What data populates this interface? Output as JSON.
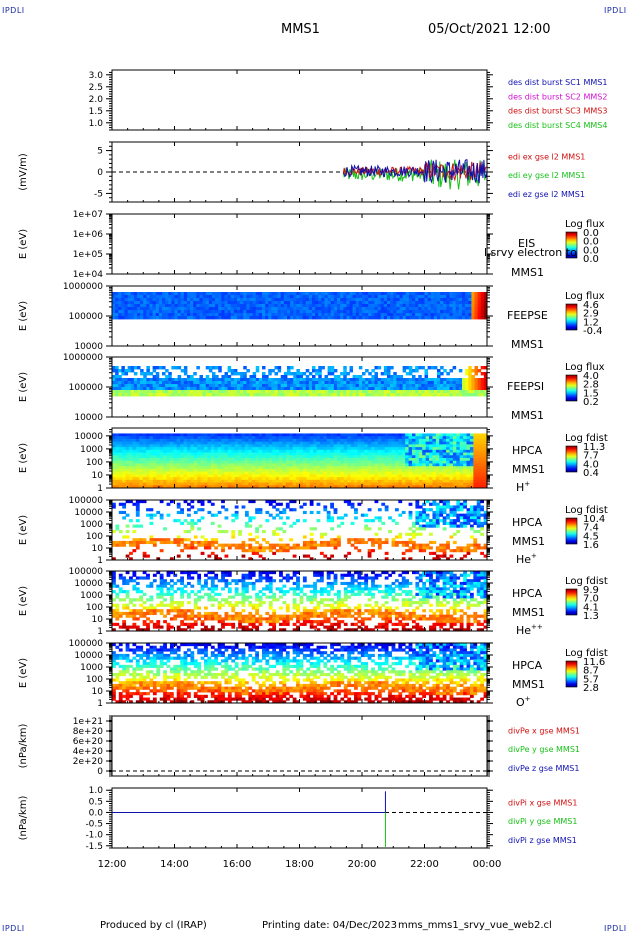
{
  "corner_labels": {
    "top_left": "IPDLI",
    "top_right": "IPDLI",
    "bottom_left": "IPDLI",
    "bottom_right": "IPDLI"
  },
  "header": {
    "spacecraft": "MMS1",
    "date": "05/Oct/2021 12:00"
  },
  "footer": {
    "produced": "Produced by cl (IRAP)",
    "printing": "Printing date: 04/Dec/2023",
    "script": "mms_mms1_srvy_vue_web2.cl"
  },
  "colors": {
    "red": "#d01010",
    "green": "#18c018",
    "blue": "#1010b0",
    "magenta": "#d010d0"
  },
  "chart_data": [
    {
      "type": "line",
      "id": "des",
      "ylim": [
        0.7,
        3.2
      ],
      "yticks": [
        "3.0",
        "2.5",
        "2.0",
        "1.5",
        "1.0"
      ],
      "ytick_values": [
        3.0,
        2.5,
        2.0,
        1.5,
        1.0
      ],
      "ylabel": "",
      "legend": [
        {
          "text": "des dist burst SC1 MMS1",
          "color": "#1010b0"
        },
        {
          "text": "des dist burst SC2 MMS2",
          "color": "#d010d0"
        },
        {
          "text": "des dist burst SC3 MMS3",
          "color": "#d01010"
        },
        {
          "text": "des dist burst SC4 MMS4",
          "color": "#18c018"
        }
      ]
    },
    {
      "type": "line",
      "id": "edi",
      "ylim": [
        -7,
        7
      ],
      "yticks": [
        "5",
        "0",
        "-5"
      ],
      "ytick_values": [
        5,
        0,
        -5
      ],
      "ylabel": "(mV/m)",
      "data_start_hour": 7.4,
      "legend": [
        {
          "text": "edi ex gse l2 MMS1",
          "color": "#d01010"
        },
        {
          "text": "edi ey gse l2 MMS1",
          "color": "#18c018"
        },
        {
          "text": "edi ez gse l2 MMS1",
          "color": "#1010b0"
        }
      ]
    },
    {
      "type": "heatmap",
      "id": "eis",
      "ylim": [
        10000.0,
        10000000.0
      ],
      "log": true,
      "yticks": [
        "1e+07",
        "1e+06",
        "1e+05",
        "1e+04"
      ],
      "ytick_values": [
        10000000.0,
        1000000.0,
        100000.0,
        10000.0
      ],
      "ylabel": "E (eV)",
      "instrument": "EIS",
      "spacecraft": "MMS1",
      "overlay_text": "l srvy electron to",
      "cbar_title": "Log flux",
      "cbar_ticks": [
        "0.0",
        "0.0",
        "0.0",
        "0.0"
      ]
    },
    {
      "type": "heatmap",
      "id": "feepse",
      "ylim": [
        10000.0,
        1000000.0
      ],
      "log": true,
      "yticks": [
        "1000000",
        "100000",
        "10000"
      ],
      "ytick_values": [
        1000000.0,
        100000.0,
        10000.0
      ],
      "ylabel": "E (eV)",
      "instrument": "FEEPSE",
      "spacecraft": "MMS1",
      "cbar_title": "Log flux",
      "cbar_ticks": [
        "4.6",
        "2.9",
        "1.2",
        "-0.4"
      ]
    },
    {
      "type": "heatmap",
      "id": "feepsi",
      "ylim": [
        10000.0,
        1000000.0
      ],
      "log": true,
      "yticks": [
        "1000000",
        "100000",
        "10000"
      ],
      "ytick_values": [
        1000000.0,
        100000.0,
        10000.0
      ],
      "ylabel": "E (eV)",
      "instrument": "FEEPSI",
      "spacecraft": "MMS1",
      "cbar_title": "Log flux",
      "cbar_ticks": [
        "4.0",
        "2.8",
        "1.5",
        "0.2"
      ]
    },
    {
      "type": "heatmap",
      "id": "hpca_h",
      "ylim": [
        1,
        40000.0
      ],
      "log": true,
      "yticks": [
        "10000",
        "1000",
        "100",
        "10",
        "1"
      ],
      "ytick_values": [
        10000.0,
        1000.0,
        100.0,
        10.0,
        1
      ],
      "ylabel": "E (eV)",
      "instrument": "HPCA",
      "spacecraft": "MMS1",
      "species": "H",
      "species_charge": "+",
      "cbar_title": "Log fdist",
      "cbar_ticks": [
        "11.3",
        "7.7",
        "4.0",
        "0.4"
      ]
    },
    {
      "type": "heatmap",
      "id": "hpca_he",
      "ylim": [
        1,
        100000.0
      ],
      "log": true,
      "yticks": [
        "100000",
        "10000",
        "1000",
        "100",
        "10",
        "1"
      ],
      "ytick_values": [
        100000.0,
        10000.0,
        1000.0,
        100.0,
        10.0,
        1
      ],
      "ylabel": "E (eV)",
      "instrument": "HPCA",
      "spacecraft": "MMS1",
      "species": "He",
      "species_charge": "+",
      "cbar_title": "Log fdist",
      "cbar_ticks": [
        "10.4",
        "7.4",
        "4.5",
        "1.6"
      ]
    },
    {
      "type": "heatmap",
      "id": "hpca_hepp",
      "ylim": [
        1,
        100000.0
      ],
      "log": true,
      "yticks": [
        "100000",
        "10000",
        "1000",
        "100",
        "10",
        "1"
      ],
      "ytick_values": [
        100000.0,
        10000.0,
        1000.0,
        100.0,
        10.0,
        1
      ],
      "ylabel": "E (eV)",
      "instrument": "HPCA",
      "spacecraft": "MMS1",
      "species": "He",
      "species_charge": "++",
      "cbar_title": "Log fdist",
      "cbar_ticks": [
        "9.9",
        "7.0",
        "4.1",
        "1.3"
      ]
    },
    {
      "type": "heatmap",
      "id": "hpca_o",
      "ylim": [
        1,
        100000.0
      ],
      "log": true,
      "yticks": [
        "100000",
        "10000",
        "1000",
        "100",
        "10",
        "1"
      ],
      "ytick_values": [
        100000.0,
        10000.0,
        1000.0,
        100.0,
        10.0,
        1
      ],
      "ylabel": "E (eV)",
      "instrument": "HPCA",
      "spacecraft": "MMS1",
      "species": "O",
      "species_charge": "+",
      "cbar_title": "Log fdist",
      "cbar_ticks": [
        "11.6",
        "8.7",
        "5.7",
        "2.8"
      ]
    },
    {
      "type": "line",
      "id": "divpe",
      "ylim": [
        -1e+20,
        1.1e+21
      ],
      "yticks": [
        "1e+21",
        "8e+20",
        "6e+20",
        "4e+20",
        "2e+20",
        "0"
      ],
      "ytick_values": [
        1e+21,
        8e+20,
        6e+20,
        4e+20,
        2e+20,
        0
      ],
      "ylabel": "(nPa/km)",
      "legend": [
        {
          "text": "divPe x gse MMS1",
          "color": "#d01010"
        },
        {
          "text": "divPe y gse MMS1",
          "color": "#18c018"
        },
        {
          "text": "divPe z gse MMS1",
          "color": "#1010b0"
        }
      ]
    },
    {
      "type": "line",
      "id": "divpi",
      "ylim": [
        -1.6,
        1.1
      ],
      "yticks": [
        "1.0",
        "0.5",
        "0.0",
        "-0.5",
        "-1.0",
        "-1.5"
      ],
      "ytick_values": [
        1.0,
        0.5,
        0.0,
        -0.5,
        -1.0,
        -1.5
      ],
      "ylabel": "(nPa/km)",
      "spike_hour": 8.75,
      "legend": [
        {
          "text": "divPi x gse MMS1",
          "color": "#d01010"
        },
        {
          "text": "divPi y gse MMS1",
          "color": "#18c018"
        },
        {
          "text": "divPi z gse MMS1",
          "color": "#1010b0"
        }
      ]
    }
  ],
  "xaxis": {
    "xlim_hours": [
      0,
      12
    ],
    "ticks": [
      "12:00",
      "14:00",
      "16:00",
      "18:00",
      "20:00",
      "22:00",
      "00:00"
    ],
    "tick_hours": [
      0,
      2,
      4,
      6,
      8,
      10,
      12
    ]
  }
}
